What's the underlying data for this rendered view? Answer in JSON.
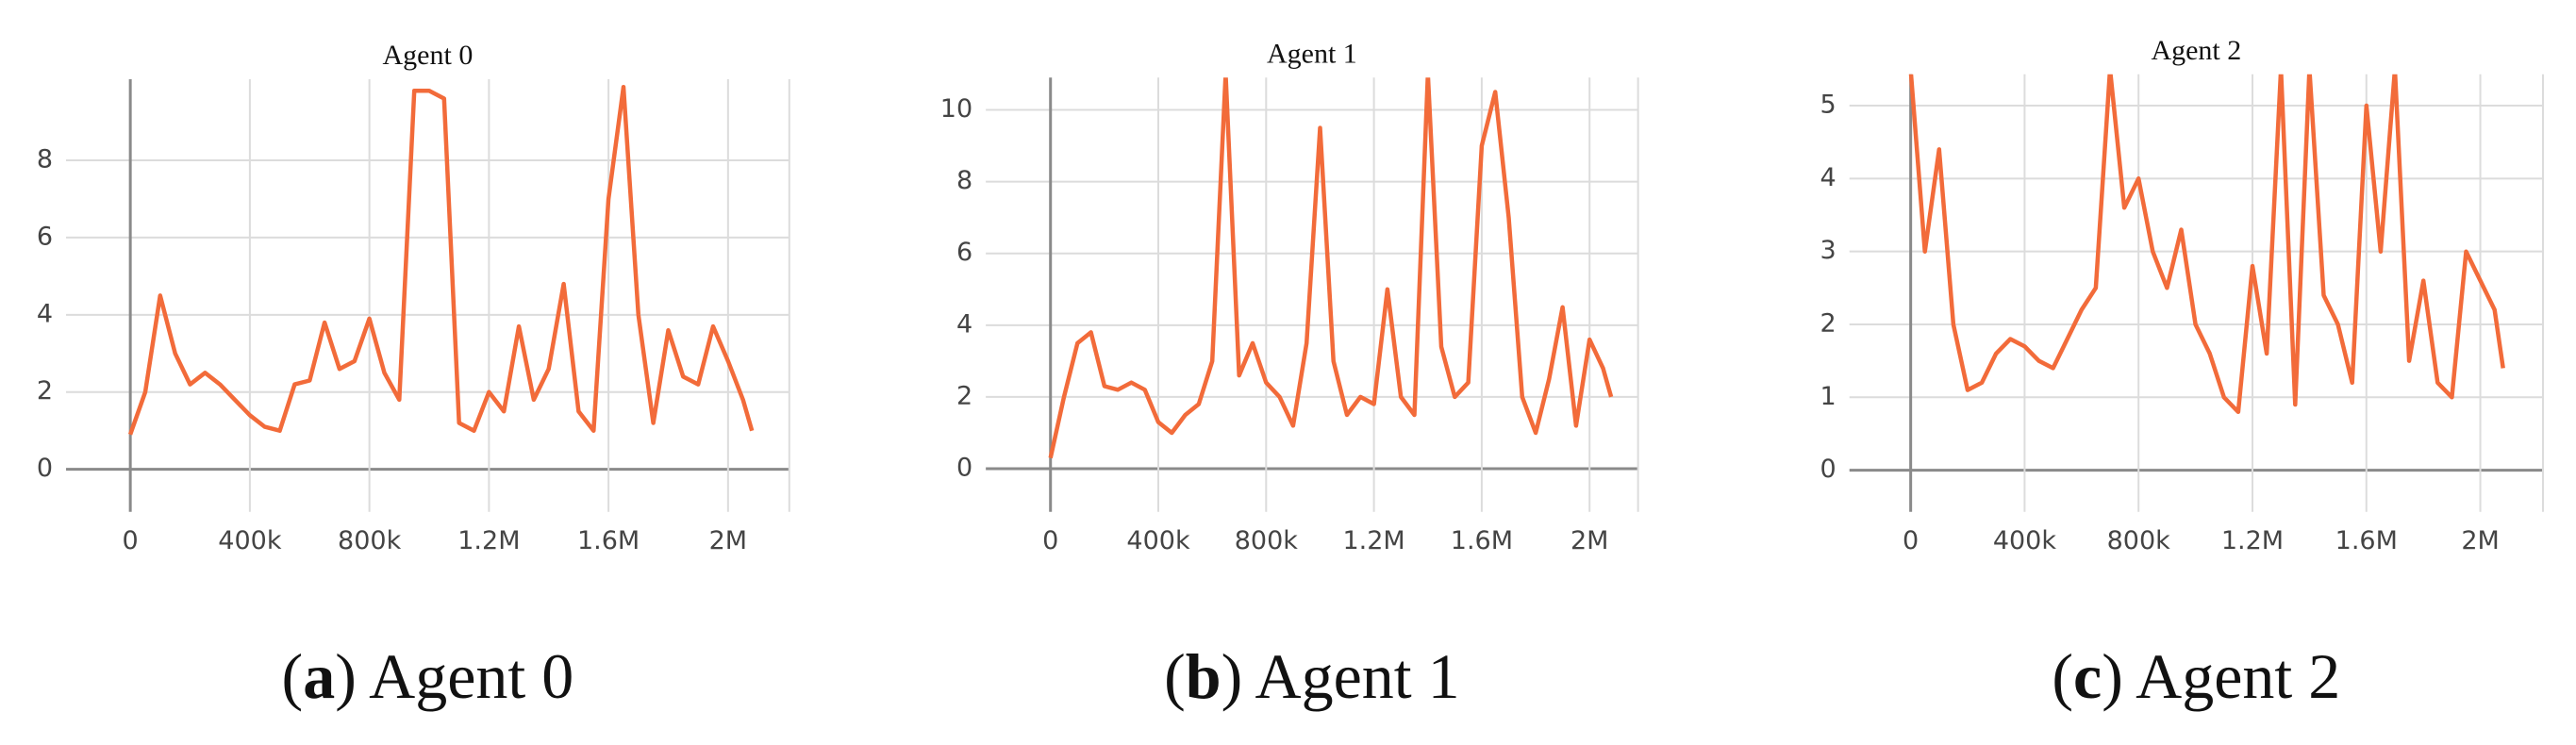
{
  "chart_data": [
    {
      "type": "line",
      "title": "Agent 0",
      "caption": [
        "(",
        "a",
        ") Agent 0"
      ],
      "color": "#f26b3a",
      "grid": true,
      "x": [
        0,
        50000,
        100000,
        150000,
        200000,
        250000,
        300000,
        350000,
        400000,
        450000,
        500000,
        550000,
        600000,
        650000,
        700000,
        750000,
        800000,
        850000,
        900000,
        950000,
        1000000,
        1050000,
        1100000,
        1150000,
        1200000,
        1250000,
        1300000,
        1350000,
        1400000,
        1450000,
        1500000,
        1550000,
        1600000,
        1650000,
        1700000,
        1750000,
        1800000,
        1850000,
        1900000,
        1950000,
        2000000,
        2050000,
        2080000
      ],
      "values": [
        0.9,
        2.0,
        4.5,
        3.0,
        2.2,
        2.5,
        2.2,
        1.8,
        1.4,
        1.1,
        1.0,
        2.2,
        2.3,
        3.8,
        2.6,
        2.8,
        3.9,
        2.5,
        1.8,
        9.8,
        9.8,
        9.6,
        1.2,
        1.0,
        2.0,
        1.5,
        3.7,
        1.8,
        2.6,
        4.8,
        1.5,
        1.0,
        7.0,
        9.9,
        4.0,
        1.2,
        3.6,
        2.4,
        2.2,
        3.7,
        2.8,
        1.8,
        1.0
      ],
      "xlim": [
        -215000,
        2205000
      ],
      "ylim": [
        -1.1,
        10.1
      ],
      "xticks": [
        0,
        {
          "value": 400000,
          "label": "400k"
        },
        {
          "value": 800000,
          "label": "800k"
        },
        {
          "value": 1200000,
          "label": "1.2M"
        },
        {
          "value": 1600000,
          "label": "1.6M"
        },
        {
          "value": 2000000,
          "label": "2M"
        }
      ],
      "yticks": [
        0,
        2,
        4,
        6,
        8
      ]
    },
    {
      "type": "line",
      "title": "Agent 1",
      "caption": [
        "(",
        "b",
        ") Agent 1"
      ],
      "color": "#f26b3a",
      "grid": true,
      "x": [
        0,
        50000,
        100000,
        150000,
        200000,
        250000,
        300000,
        350000,
        400000,
        450000,
        500000,
        550000,
        600000,
        650000,
        700000,
        750000,
        800000,
        850000,
        900000,
        950000,
        1000000,
        1050000,
        1100000,
        1150000,
        1200000,
        1250000,
        1300000,
        1350000,
        1400000,
        1450000,
        1500000,
        1550000,
        1600000,
        1650000,
        1700000,
        1750000,
        1800000,
        1850000,
        1900000,
        1950000,
        2000000,
        2050000,
        2080000
      ],
      "values": [
        0.3,
        2.0,
        3.5,
        3.8,
        2.3,
        2.2,
        2.4,
        2.2,
        1.3,
        1.0,
        1.5,
        1.8,
        3.0,
        11,
        2.6,
        3.5,
        2.4,
        2.0,
        1.2,
        3.5,
        9.5,
        3.0,
        1.5,
        2.0,
        1.8,
        5.0,
        2.0,
        1.5,
        11,
        3.4,
        2.0,
        2.4,
        9,
        10.5,
        7,
        2.0,
        1.0,
        2.5,
        4.5,
        1.2,
        3.6,
        2.8,
        2.0
      ],
      "xlim": [
        -240000,
        2180000
      ],
      "ylim": [
        -1.2,
        10.9
      ],
      "xticks": [
        0,
        {
          "value": 400000,
          "label": "400k"
        },
        {
          "value": 800000,
          "label": "800k"
        },
        {
          "value": 1200000,
          "label": "1.2M"
        },
        {
          "value": 1600000,
          "label": "1.6M"
        },
        {
          "value": 2000000,
          "label": "2M"
        }
      ],
      "yticks": [
        0,
        2,
        4,
        6,
        8,
        10
      ]
    },
    {
      "type": "line",
      "title": "Agent 2",
      "caption": [
        "(",
        "c",
        ") Agent 2"
      ],
      "color": "#f26b3a",
      "grid": true,
      "x": [
        0,
        50000,
        100000,
        150000,
        200000,
        250000,
        300000,
        350000,
        400000,
        450000,
        500000,
        550000,
        600000,
        650000,
        700000,
        750000,
        800000,
        850000,
        900000,
        950000,
        1000000,
        1050000,
        1100000,
        1150000,
        1200000,
        1250000,
        1300000,
        1350000,
        1400000,
        1450000,
        1500000,
        1550000,
        1600000,
        1650000,
        1700000,
        1750000,
        1800000,
        1850000,
        1900000,
        1950000,
        2000000,
        2050000,
        2080000
      ],
      "values": [
        5.5,
        3.0,
        4.4,
        2.0,
        1.1,
        1.2,
        1.6,
        1.8,
        1.7,
        1.5,
        1.4,
        1.8,
        2.2,
        2.5,
        5.5,
        3.6,
        4.0,
        3.0,
        2.5,
        3.3,
        2.0,
        1.6,
        1.0,
        0.8,
        2.8,
        1.6,
        5.5,
        0.9,
        5.5,
        2.4,
        2.0,
        1.2,
        5.0,
        3.0,
        5.5,
        1.5,
        2.6,
        1.2,
        1.0,
        3.0,
        2.6,
        2.2,
        1.4
      ],
      "xlim": [
        -215000,
        2220000
      ],
      "ylim": [
        -0.57,
        5.43
      ],
      "xticks": [
        0,
        {
          "value": 400000,
          "label": "400k"
        },
        {
          "value": 800000,
          "label": "800k"
        },
        {
          "value": 1200000,
          "label": "1.2M"
        },
        {
          "value": 1600000,
          "label": "1.6M"
        },
        {
          "value": 2000000,
          "label": "2M"
        }
      ],
      "yticks": [
        0,
        1,
        2,
        3,
        4,
        5
      ]
    }
  ]
}
